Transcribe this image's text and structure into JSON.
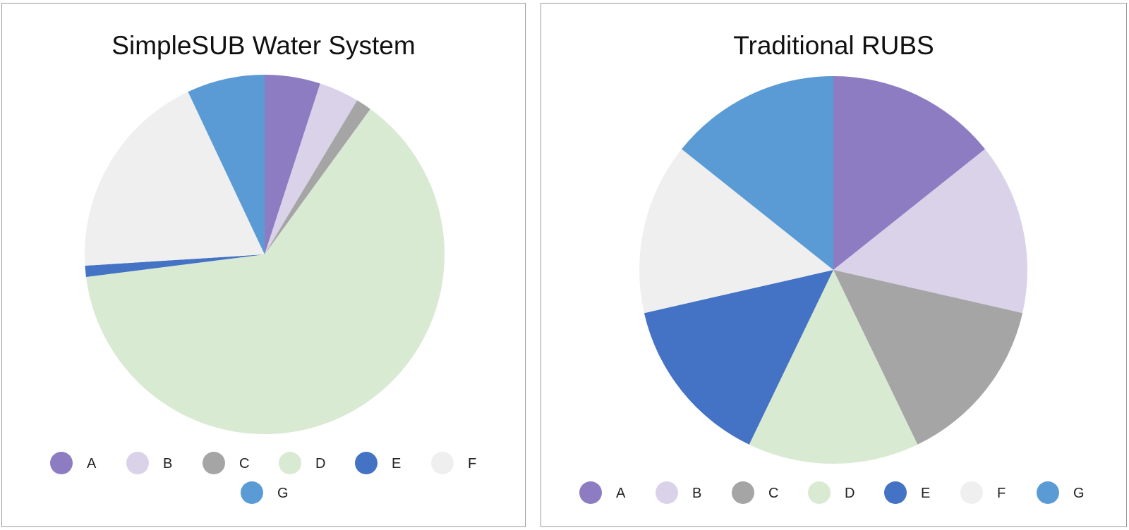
{
  "chart_data": [
    {
      "type": "pie",
      "title": "SimpleSUB Water System",
      "categories": [
        "A",
        "B",
        "C",
        "D",
        "E",
        "F",
        "G"
      ],
      "values": [
        5.0,
        3.6,
        1.4,
        63.0,
        1.0,
        19.0,
        7.0
      ],
      "colors": [
        "#8e7cc3",
        "#d9d2e9",
        "#a5a5a5",
        "#d9ead3",
        "#4472c4",
        "#efefef",
        "#5b9bd5"
      ],
      "legend": "bottom"
    },
    {
      "type": "pie",
      "title": "Traditional RUBS",
      "categories": [
        "A",
        "B",
        "C",
        "D",
        "E",
        "F",
        "G"
      ],
      "values": [
        14.29,
        14.29,
        14.29,
        14.29,
        14.29,
        14.29,
        14.29
      ],
      "colors": [
        "#8e7cc3",
        "#d9d2e9",
        "#a5a5a5",
        "#d9ead3",
        "#4472c4",
        "#efefef",
        "#5b9bd5"
      ],
      "legend": "bottom"
    }
  ]
}
